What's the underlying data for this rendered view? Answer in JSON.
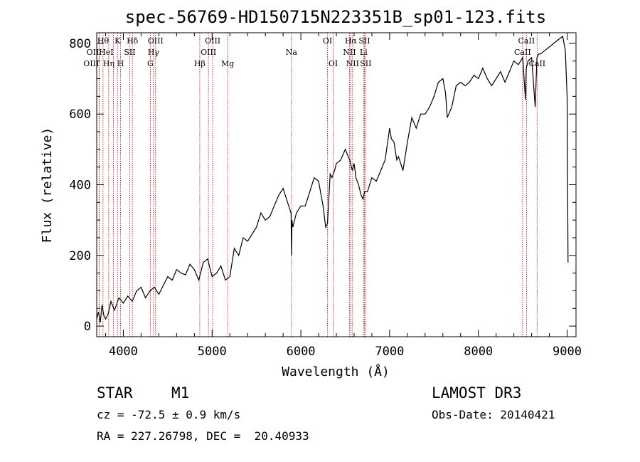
{
  "chart_data": {
    "type": "line",
    "title": "spec-56769-HD150715N223351B_sp01-123.fits",
    "xlabel": "Wavelength (Å)",
    "ylabel": "Flux (relative)",
    "xlim": [
      3700,
      9100
    ],
    "ylim": [
      -30,
      830
    ],
    "xticks": [
      4000,
      5000,
      6000,
      7000,
      8000,
      9000
    ],
    "yticks": [
      0,
      200,
      400,
      600,
      800
    ],
    "grid": false,
    "series": [
      {
        "name": "spectrum",
        "x": [
          3700,
          3720,
          3740,
          3760,
          3780,
          3800,
          3830,
          3860,
          3900,
          3950,
          4000,
          4050,
          4100,
          4150,
          4200,
          4250,
          4300,
          4350,
          4400,
          4450,
          4500,
          4550,
          4600,
          4650,
          4700,
          4750,
          4800,
          4850,
          4900,
          4950,
          5000,
          5050,
          5100,
          5150,
          5200,
          5250,
          5300,
          5350,
          5400,
          5450,
          5500,
          5550,
          5600,
          5650,
          5700,
          5750,
          5800,
          5850,
          5890,
          5895,
          5900,
          5910,
          5950,
          6000,
          6050,
          6100,
          6150,
          6200,
          6250,
          6280,
          6300,
          6330,
          6350,
          6380,
          6400,
          6450,
          6500,
          6550,
          6580,
          6600,
          6620,
          6650,
          6680,
          6700,
          6720,
          6750,
          6800,
          6850,
          6900,
          6950,
          7000,
          7020,
          7050,
          7080,
          7100,
          7150,
          7200,
          7250,
          7300,
          7350,
          7400,
          7450,
          7500,
          7550,
          7600,
          7630,
          7650,
          7700,
          7750,
          7800,
          7850,
          7900,
          7950,
          8000,
          8050,
          8100,
          8150,
          8200,
          8250,
          8300,
          8350,
          8400,
          8450,
          8500,
          8530,
          8540,
          8560,
          8600,
          8640,
          8660,
          8680,
          8700,
          8750,
          8800,
          8850,
          8900,
          8950,
          8980,
          9000,
          9010
        ],
        "values": [
          20,
          40,
          10,
          60,
          30,
          20,
          35,
          70,
          45,
          80,
          65,
          85,
          70,
          100,
          110,
          80,
          100,
          110,
          90,
          115,
          140,
          130,
          160,
          150,
          145,
          175,
          160,
          130,
          180,
          190,
          140,
          150,
          170,
          130,
          140,
          220,
          200,
          250,
          240,
          260,
          280,
          320,
          300,
          310,
          340,
          370,
          390,
          350,
          320,
          200,
          300,
          280,
          320,
          340,
          340,
          380,
          420,
          410,
          340,
          280,
          290,
          430,
          420,
          440,
          460,
          470,
          500,
          470,
          440,
          460,
          420,
          400,
          370,
          360,
          380,
          380,
          420,
          410,
          440,
          470,
          560,
          530,
          520,
          470,
          480,
          440,
          520,
          590,
          560,
          600,
          600,
          620,
          650,
          690,
          700,
          660,
          590,
          620,
          680,
          690,
          680,
          690,
          710,
          700,
          730,
          700,
          680,
          700,
          720,
          690,
          720,
          750,
          740,
          760,
          640,
          730,
          750,
          760,
          620,
          760,
          770,
          770,
          780,
          790,
          800,
          810,
          820,
          780,
          650,
          180
        ]
      }
    ],
    "lines": [
      {
        "label": "OII",
        "x": 3727,
        "row": 1,
        "anchor": "end"
      },
      {
        "label": "OIII",
        "x": 3727,
        "row": 2,
        "anchor": "end"
      },
      {
        "label": "Hθ",
        "x": 3771,
        "row": 0,
        "anchor": "middle"
      },
      {
        "label": "Hη",
        "x": 3835,
        "row": 2,
        "anchor": "middle"
      },
      {
        "label": "HeI",
        "x": 3889,
        "row": 1,
        "anchor": "end"
      },
      {
        "label": "K",
        "x": 3934,
        "row": 0,
        "anchor": "middle"
      },
      {
        "label": "H",
        "x": 3969,
        "row": 2,
        "anchor": "middle"
      },
      {
        "label": "SII",
        "x": 4072,
        "row": 1,
        "anchor": "middle"
      },
      {
        "label": "Hδ",
        "x": 4102,
        "row": 0,
        "anchor": "middle"
      },
      {
        "label": "G",
        "x": 4304,
        "row": 2,
        "anchor": "middle"
      },
      {
        "label": "Hγ",
        "x": 4340,
        "row": 1,
        "anchor": "middle"
      },
      {
        "label": "OIII",
        "x": 4363,
        "row": 0,
        "anchor": "middle"
      },
      {
        "label": "Hβ",
        "x": 4861,
        "row": 2,
        "anchor": "middle"
      },
      {
        "label": "OIII",
        "x": 4959,
        "row": 1,
        "anchor": "middle"
      },
      {
        "label": "OIII",
        "x": 5007,
        "row": 0,
        "anchor": "middle"
      },
      {
        "label": "Mg",
        "x": 5175,
        "row": 2,
        "anchor": "middle"
      },
      {
        "label": "Na",
        "x": 5894,
        "row": 1,
        "anchor": "middle"
      },
      {
        "label": "OI",
        "x": 6300,
        "row": 0,
        "anchor": "middle"
      },
      {
        "label": "OI",
        "x": 6364,
        "row": 2,
        "anchor": "middle"
      },
      {
        "label": "NII",
        "x": 6548,
        "row": 1,
        "anchor": "middle"
      },
      {
        "label": "Hα",
        "x": 6563,
        "row": 0,
        "anchor": "middle"
      },
      {
        "label": "NII",
        "x": 6583,
        "row": 2,
        "anchor": "middle"
      },
      {
        "label": "Li",
        "x": 6707,
        "row": 1,
        "anchor": "middle"
      },
      {
        "label": "SII",
        "x": 6716,
        "row": 0,
        "anchor": "middle"
      },
      {
        "label": "SII",
        "x": 6731,
        "row": 2,
        "anchor": "middle"
      },
      {
        "label": "CaII",
        "x": 8498,
        "row": 1,
        "anchor": "middle"
      },
      {
        "label": "CaII",
        "x": 8542,
        "row": 0,
        "anchor": "middle"
      },
      {
        "label": "CaII",
        "x": 8662,
        "row": 2,
        "anchor": "middle"
      }
    ]
  },
  "footer": {
    "object_class": "STAR",
    "subclass": "M1",
    "survey": "LAMOST DR3",
    "redshift": "cz = -72.5 ± 0.9 km/s",
    "obs_date": "Obs-Date: 20140421",
    "coords": "RA = 227.26798, DEC =  20.40933"
  },
  "colors": {
    "line_marker": "#cc0000",
    "spectrum": "#000000"
  }
}
